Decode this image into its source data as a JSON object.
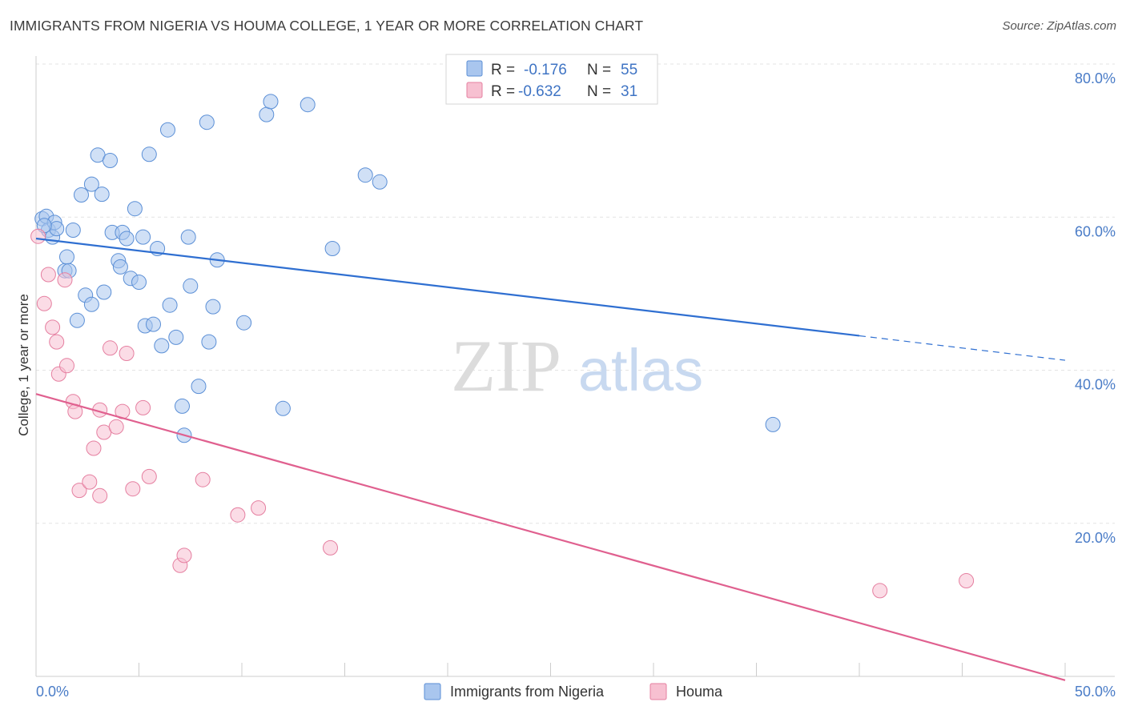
{
  "header": {
    "title": "IMMIGRANTS FROM NIGERIA VS HOUMA COLLEGE, 1 YEAR OR MORE CORRELATION CHART",
    "source": "Source: ZipAtlas.com"
  },
  "watermark": {
    "zip": "ZIP",
    "atlas": "atlas"
  },
  "stats_legend": [
    {
      "r_label": "R =",
      "r_value": "-0.176",
      "n_label": "N =",
      "n_value": "55",
      "color": "#a9c6ee",
      "stroke": "#5b8fd6"
    },
    {
      "r_label": "R =",
      "r_value": "-0.632",
      "n_label": "N =",
      "n_value": "31",
      "color": "#f7c0d1",
      "stroke": "#e57fa0"
    }
  ],
  "chart_data": {
    "type": "scatter",
    "title": "IMMIGRANTS FROM NIGERIA VS HOUMA COLLEGE, 1 YEAR OR MORE CORRELATION CHART",
    "xlabel": "",
    "ylabel": "College, 1 year or more",
    "xlim": [
      0,
      50
    ],
    "ylim": [
      0,
      80
    ],
    "x_tick_labels": [
      "0.0%",
      "50.0%"
    ],
    "y_ticks": [
      20,
      40,
      60,
      80
    ],
    "y_tick_labels": [
      "20.0%",
      "40.0%",
      "60.0%",
      "80.0%"
    ],
    "grid": true,
    "legend_position": "bottom-center",
    "series": [
      {
        "name": "Immigrants from Nigeria",
        "color": "#a9c6ee",
        "stroke": "#5b8fd6",
        "line_color": "#2f6fd1",
        "trend": {
          "x0": 0.0,
          "y0": 57.2,
          "x1": 40.0,
          "y1": 44.5,
          "dash_to_x": 50.0,
          "dash_to_y": 41.3
        },
        "points": [
          [
            0.3,
            59.8
          ],
          [
            0.5,
            60.1
          ],
          [
            0.6,
            58.3
          ],
          [
            0.8,
            57.4
          ],
          [
            0.9,
            59.3
          ],
          [
            1.0,
            58.5
          ],
          [
            1.4,
            53.0
          ],
          [
            1.5,
            54.8
          ],
          [
            1.8,
            58.3
          ],
          [
            2.0,
            46.5
          ],
          [
            2.2,
            62.9
          ],
          [
            2.4,
            49.8
          ],
          [
            2.7,
            48.6
          ],
          [
            2.7,
            64.3
          ],
          [
            3.0,
            68.1
          ],
          [
            3.2,
            63.0
          ],
          [
            3.3,
            50.2
          ],
          [
            3.6,
            67.4
          ],
          [
            3.7,
            58.0
          ],
          [
            4.0,
            54.3
          ],
          [
            4.1,
            53.5
          ],
          [
            4.2,
            58.0
          ],
          [
            4.4,
            57.2
          ],
          [
            4.6,
            52.0
          ],
          [
            4.8,
            61.1
          ],
          [
            5.0,
            51.5
          ],
          [
            5.2,
            57.4
          ],
          [
            5.3,
            45.8
          ],
          [
            5.5,
            68.2
          ],
          [
            5.7,
            46.0
          ],
          [
            5.9,
            55.9
          ],
          [
            6.1,
            43.2
          ],
          [
            6.4,
            71.4
          ],
          [
            6.5,
            48.5
          ],
          [
            6.8,
            44.3
          ],
          [
            7.1,
            35.3
          ],
          [
            7.2,
            31.5
          ],
          [
            7.4,
            57.4
          ],
          [
            7.5,
            51.0
          ],
          [
            7.9,
            37.9
          ],
          [
            8.3,
            72.4
          ],
          [
            8.4,
            43.7
          ],
          [
            8.6,
            48.3
          ],
          [
            8.8,
            54.4
          ],
          [
            10.1,
            46.2
          ],
          [
            11.2,
            73.4
          ],
          [
            11.4,
            75.1
          ],
          [
            12.0,
            35.0
          ],
          [
            13.2,
            74.7
          ],
          [
            14.4,
            55.9
          ],
          [
            16.0,
            65.5
          ],
          [
            16.7,
            64.6
          ],
          [
            35.8,
            32.9
          ],
          [
            0.4,
            58.9
          ],
          [
            1.6,
            53.0
          ]
        ]
      },
      {
        "name": "Houma",
        "color": "#f7c0d1",
        "stroke": "#e57fa0",
        "line_color": "#e0608f",
        "trend": {
          "x0": 0.0,
          "y0": 36.9,
          "x1": 50.0,
          "y1": -0.5
        },
        "points": [
          [
            0.1,
            57.5
          ],
          [
            0.4,
            48.7
          ],
          [
            0.6,
            52.5
          ],
          [
            0.8,
            45.6
          ],
          [
            1.0,
            43.7
          ],
          [
            1.1,
            39.5
          ],
          [
            1.4,
            51.8
          ],
          [
            1.5,
            40.6
          ],
          [
            1.8,
            35.9
          ],
          [
            1.9,
            34.6
          ],
          [
            2.1,
            24.3
          ],
          [
            2.6,
            25.4
          ],
          [
            2.8,
            29.8
          ],
          [
            3.1,
            34.8
          ],
          [
            3.1,
            23.6
          ],
          [
            3.3,
            31.9
          ],
          [
            3.6,
            42.9
          ],
          [
            3.9,
            32.6
          ],
          [
            4.2,
            34.6
          ],
          [
            4.4,
            42.2
          ],
          [
            4.7,
            24.5
          ],
          [
            5.2,
            35.1
          ],
          [
            5.5,
            26.1
          ],
          [
            7.0,
            14.5
          ],
          [
            7.2,
            15.8
          ],
          [
            8.1,
            25.7
          ],
          [
            9.8,
            21.1
          ],
          [
            10.8,
            22.0
          ],
          [
            14.3,
            16.8
          ],
          [
            41.0,
            11.2
          ],
          [
            45.2,
            12.5
          ]
        ]
      }
    ]
  },
  "bottom_legend": [
    {
      "label": "Immigrants from Nigeria",
      "color": "#a9c6ee",
      "stroke": "#5b8fd6"
    },
    {
      "label": "Houma",
      "color": "#f7c0d1",
      "stroke": "#e57fa0"
    }
  ]
}
